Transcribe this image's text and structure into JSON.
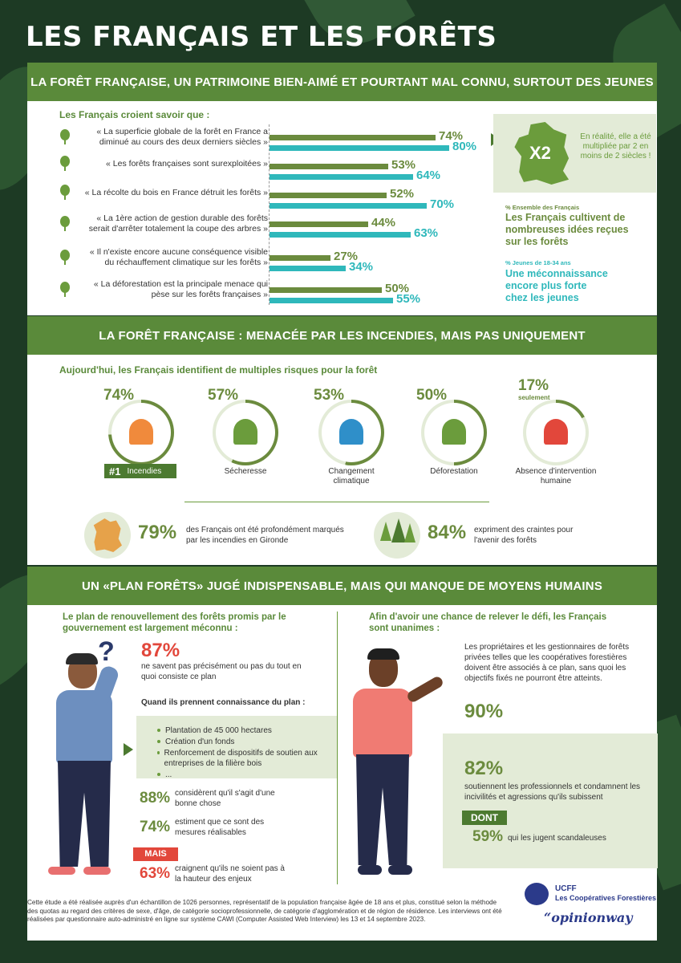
{
  "title": "LES FRANÇAIS ET LES FORÊTS",
  "colors": {
    "green": "#6b8b3e",
    "teal": "#2fb8bb",
    "red": "#e2473b",
    "band": "#5a8a3a"
  },
  "section1": {
    "banner": "LA FORÊT FRANÇAISE, UN PATRIMOINE BIEN-AIMÉ ET POURTANT MAL CONNU, SURTOUT DES JEUNES",
    "subtitle": "Les Français croient savoir que :",
    "x2": {
      "value": "X2",
      "text": "En réalité, elle a été multipliée par 2 en moins de 2 siècles !"
    },
    "legend": {
      "all_small": "% Ensemble des Français",
      "all_big": "Les Français cultivent de nombreuses idées reçues sur les forêts",
      "young_small": "% Jeunes de 18-34 ans",
      "young_big": "Une méconnaissance encore plus forte chez les jeunes"
    }
  },
  "chart_data": {
    "type": "bar",
    "categories": [
      "« La superficie globale de la forêt en France a diminué au cours des deux derniers siècles »",
      "« Les forêts françaises sont surexploitées »",
      "« La récolte du bois en France détruit les forêts »",
      "« La 1ère action de gestion durable des forêts serait d'arrêter totalement la coupe des arbres »",
      "« Il n'existe encore aucune conséquence visible du réchauffement climatique sur les forêts »",
      "« La déforestation est la principale menace qui pèse sur les forêts françaises »"
    ],
    "series": [
      {
        "name": "% Ensemble des Français",
        "values": [
          74,
          53,
          52,
          44,
          27,
          50
        ],
        "labels": [
          "74%",
          "53%",
          "52%",
          "44%",
          "27%",
          "50%"
        ]
      },
      {
        "name": "% Jeunes de 18-34 ans",
        "values": [
          80,
          64,
          70,
          63,
          34,
          55
        ],
        "labels": [
          "80%",
          "64%",
          "70%",
          "63%",
          "34%",
          "55%"
        ]
      }
    ]
  },
  "section2": {
    "banner": "LA FORÊT FRANÇAISE : MENACÉE PAR LES INCENDIES, MAIS PAS UNIQUEMENT",
    "subtitle": "Aujourd'hui, les Français identifient de multiples risques pour la forêt",
    "risks": [
      {
        "pct": "74%",
        "value": 74,
        "label": "Incendies"
      },
      {
        "pct": "57%",
        "value": 57,
        "label": "Sécheresse"
      },
      {
        "pct": "53%",
        "value": 53,
        "label": "Changement climatique"
      },
      {
        "pct": "50%",
        "value": 50,
        "label": "Déforestation"
      },
      {
        "pct": "17%",
        "value": 17,
        "label": "Absence d'intervention humaine",
        "note": "seulement"
      }
    ],
    "rank": "#1",
    "stat1": {
      "pct": "79%",
      "text": "des Français ont été profondément marqués par les incendies en Gironde"
    },
    "stat2": {
      "pct": "84%",
      "text": "expriment des craintes pour l'avenir des forêts"
    }
  },
  "section3": {
    "banner": "UN «PLAN FORÊTS» JUGÉ INDISPENSABLE, MAIS QUI MANQUE DE MOYENS HUMAINS",
    "left": {
      "heading": "Le plan de renouvellement des forêts promis par le gouvernement est largement méconnu :",
      "pct": "87%",
      "text": "ne savent pas précisément ou pas du tout en quoi consiste ce plan",
      "known": "Quand ils prennent connaissance du plan :",
      "bullets": [
        "Plantation de 45 000 hectares",
        "Création d'un fonds",
        "Renforcement de dispositifs de soutien aux entreprises de la filière bois",
        "..."
      ],
      "s1_pct": "88%",
      "s1_text": "considèrent qu'il s'agit d'une bonne chose",
      "s2_pct": "74%",
      "s2_text": "estiment que ce sont des mesures réalisables",
      "mais": "MAIS",
      "s3_pct": "63%",
      "s3_text": "craignent qu'ils ne soient pas à la hauteur des enjeux"
    },
    "right": {
      "heading": "Afin d'avoir une chance de relever le défi, les Français sont unanimes :",
      "text": "Les propriétaires et les gestionnaires de forêts privées telles que les coopératives forestières doivent être associés à ce plan, sans quoi les objectifs fixés ne pourront être atteints.",
      "pct": "90%",
      "pct2": "82%",
      "text2": "soutiennent les professionnels et condamnent les incivilités et agressions qu'ils subissent",
      "dont": "DONT",
      "pct3": "59%",
      "text3": "qui les jugent scandaleuses"
    }
  },
  "footer": {
    "note": "Cette étude a été réalisée auprès d'un échantillon de 1026 personnes, représentatif de la population française âgée de 18 ans et plus, constitué selon la méthode des quotas au regard des critères de sexe, d'âge, de catégorie socioprofessionnelle, de catégorie d'agglomération et de région de résidence. Les interviews ont été réalisées par questionnaire auto-administré en ligne sur système CAWI (Computer Assisted Web Interview) les 13 et 14 septembre 2023.",
    "logo1_a": "UCFF",
    "logo1_b": "Les Coopératives Forestières",
    "logo2": "opinionway"
  }
}
